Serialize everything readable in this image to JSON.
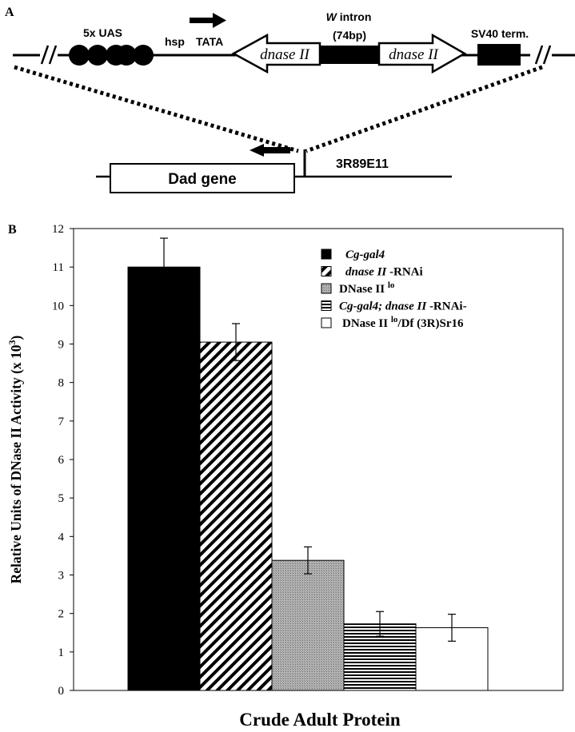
{
  "panel_a": {
    "panel_label": "A",
    "uas_label": "5x UAS",
    "hsp_label": "hsp",
    "tata_label": "TATA",
    "dnase_left_label": "dnase II",
    "dnase_right_label": "dnase II",
    "intron_label_w": "W",
    "intron_label_rest": " intron",
    "intron_size": "(74bp)",
    "sv40_label": "SV40 term.",
    "dad_gene_label": "Dad gene",
    "locus_label": "3R89E11"
  },
  "chart_data": {
    "type": "bar",
    "panel_label": "B",
    "xlabel": "Crude Adult Protein",
    "ylabel_main": "Relative Units of DNase II Activity (x 10",
    "ylabel_sup": "3",
    "ylabel_close": ")",
    "ylim": [
      0,
      12
    ],
    "yticks": [
      0,
      1,
      2,
      3,
      4,
      5,
      6,
      7,
      8,
      9,
      10,
      11,
      12
    ],
    "grid": false,
    "legend_position": "top-right",
    "series": [
      {
        "name": "Cg-gal4",
        "value": 11.0,
        "error": 0.75,
        "fill": "#000000",
        "pattern": "solid"
      },
      {
        "name": "dnase II -RNAi",
        "value": 9.05,
        "error": 0.48,
        "fill": "#ffffff",
        "pattern": "diagonal"
      },
      {
        "name": "DNase II lo",
        "value": 3.38,
        "error": 0.35,
        "fill": "#a0a0a0",
        "pattern": "dots"
      },
      {
        "name": "Cg-gal4; dnase II -RNAi-",
        "value": 1.73,
        "error": 0.32,
        "fill": "#ffffff",
        "pattern": "horizontal"
      },
      {
        "name": "DNase II lo/Df (3R)Sr16",
        "value": 1.63,
        "error": 0.35,
        "fill": "#ffffff",
        "pattern": "none"
      }
    ],
    "legend": [
      {
        "parts": [
          {
            "t": "Cg-gal4",
            "i": true
          }
        ]
      },
      {
        "parts": [
          {
            "t": "dnase II",
            "i": true
          },
          {
            "t": " -RNAi"
          }
        ]
      },
      {
        "parts": [
          {
            "t": "DNase II "
          },
          {
            "t": "lo",
            "sup": true
          }
        ]
      },
      {
        "parts": [
          {
            "t": "Cg-gal4; dnase II",
            "i": true
          },
          {
            "t": " -RNAi-"
          }
        ]
      },
      {
        "parts": [
          {
            "t": "DNase II "
          },
          {
            "t": "lo",
            "sup": true
          },
          {
            "t": "/Df (3R)Sr16"
          }
        ]
      }
    ]
  }
}
